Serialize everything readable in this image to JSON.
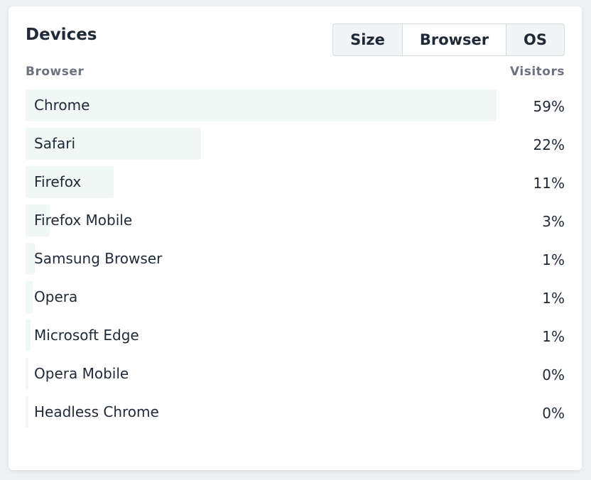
{
  "card": {
    "title": "Devices",
    "tabs": [
      {
        "label": "Size",
        "active": false
      },
      {
        "label": "Browser",
        "active": true
      },
      {
        "label": "OS",
        "active": false
      }
    ],
    "columns": {
      "name": "Browser",
      "value": "Visitors"
    },
    "bar_color": "#f0f8f5",
    "rows": [
      {
        "name": "Chrome",
        "visitors": "59%",
        "percent": 59
      },
      {
        "name": "Safari",
        "visitors": "22%",
        "percent": 22
      },
      {
        "name": "Firefox",
        "visitors": "11%",
        "percent": 11
      },
      {
        "name": "Firefox Mobile",
        "visitors": "3%",
        "percent": 3
      },
      {
        "name": "Samsung Browser",
        "visitors": "1%",
        "percent": 1
      },
      {
        "name": "Opera",
        "visitors": "1%",
        "percent": 1
      },
      {
        "name": "Microsoft Edge",
        "visitors": "1%",
        "percent": 1
      },
      {
        "name": "Opera Mobile",
        "visitors": "0%",
        "percent": 0
      },
      {
        "name": "Headless Chrome",
        "visitors": "0%",
        "percent": 0
      }
    ]
  }
}
